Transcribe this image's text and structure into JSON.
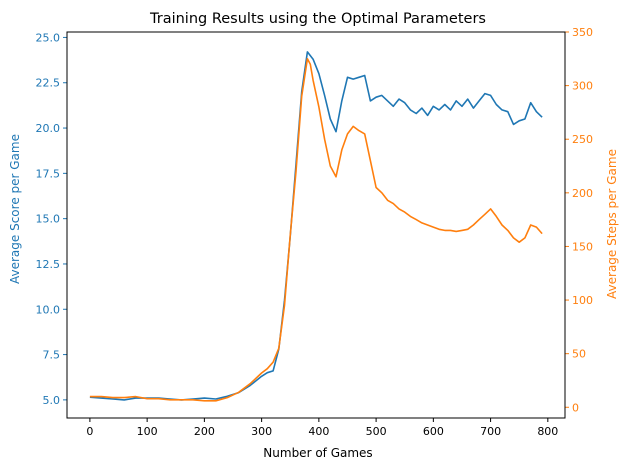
{
  "chart_data": {
    "type": "line",
    "title": "Training Results using the Optimal Parameters",
    "xlabel": "Number of Games",
    "xlim": [
      -40,
      830
    ],
    "xticks": [
      0,
      100,
      200,
      300,
      400,
      500,
      600,
      700,
      800
    ],
    "grid": false,
    "legend": "none",
    "axes": {
      "left": {
        "label": "Average Score per Game",
        "ylim": [
          4.0,
          25.3
        ],
        "ticks": [
          "5.0",
          "7.5",
          "10.0",
          "12.5",
          "15.0",
          "17.5",
          "20.0",
          "22.5",
          "25.0"
        ],
        "color": "#1f77b4"
      },
      "right": {
        "label": "Average Steps per Game",
        "ylim": [
          -10,
          350
        ],
        "ticks": [
          "0",
          "50",
          "100",
          "150",
          "200",
          "250",
          "300",
          "350"
        ],
        "color": "#ff7f0e"
      }
    },
    "series": [
      {
        "axis": "left",
        "color": "#1f77b4",
        "x": [
          0,
          20,
          40,
          60,
          80,
          100,
          120,
          140,
          160,
          180,
          200,
          220,
          240,
          260,
          280,
          300,
          310,
          320,
          330,
          340,
          350,
          360,
          370,
          380,
          385,
          390,
          400,
          410,
          420,
          430,
          440,
          450,
          460,
          470,
          480,
          490,
          500,
          510,
          520,
          530,
          540,
          550,
          560,
          570,
          580,
          590,
          600,
          610,
          620,
          630,
          640,
          650,
          660,
          670,
          680,
          690,
          700,
          710,
          720,
          730,
          740,
          750,
          760,
          770,
          780,
          790
        ],
        "y": [
          5.15,
          5.1,
          5.05,
          5.0,
          5.1,
          5.1,
          5.1,
          5.05,
          5.0,
          5.05,
          5.1,
          5.05,
          5.2,
          5.4,
          5.8,
          6.3,
          6.5,
          6.6,
          7.8,
          10.5,
          14.0,
          18.0,
          22.0,
          24.2,
          24.0,
          23.8,
          23.0,
          21.8,
          20.5,
          19.8,
          21.5,
          22.8,
          22.7,
          22.8,
          22.9,
          21.5,
          21.7,
          21.8,
          21.5,
          21.2,
          21.6,
          21.4,
          21.0,
          20.8,
          21.1,
          20.7,
          21.2,
          21.0,
          21.3,
          21.0,
          21.5,
          21.2,
          21.6,
          21.1,
          21.5,
          21.9,
          21.8,
          21.3,
          21.0,
          20.9,
          20.2,
          20.4,
          20.5,
          21.4,
          20.9,
          20.6
        ]
      },
      {
        "axis": "right",
        "color": "#ff7f0e",
        "x": [
          0,
          20,
          40,
          60,
          80,
          100,
          120,
          140,
          160,
          180,
          200,
          220,
          240,
          260,
          280,
          300,
          310,
          320,
          330,
          340,
          350,
          360,
          370,
          380,
          385,
          390,
          400,
          410,
          420,
          430,
          440,
          450,
          460,
          470,
          480,
          490,
          500,
          510,
          520,
          530,
          540,
          550,
          560,
          570,
          580,
          590,
          600,
          610,
          620,
          630,
          640,
          650,
          660,
          670,
          680,
          690,
          700,
          710,
          720,
          730,
          740,
          750,
          760,
          770,
          780,
          790
        ],
        "y": [
          10,
          10,
          9,
          9,
          10,
          8,
          8,
          7,
          7,
          7,
          6,
          6,
          9,
          14,
          22,
          32,
          36,
          42,
          55,
          95,
          160,
          220,
          290,
          325,
          320,
          305,
          280,
          250,
          225,
          215,
          240,
          255,
          262,
          258,
          255,
          230,
          205,
          200,
          193,
          190,
          185,
          182,
          178,
          175,
          172,
          170,
          168,
          166,
          165,
          165,
          164,
          165,
          166,
          170,
          175,
          180,
          185,
          178,
          170,
          165,
          158,
          154,
          158,
          170,
          168,
          162
        ]
      }
    ]
  }
}
